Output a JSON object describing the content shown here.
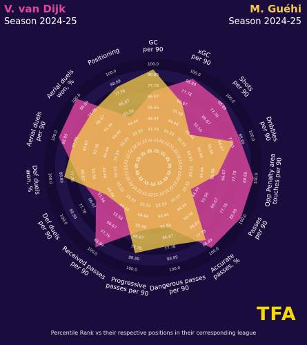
{
  "header": {
    "player1_name": "V. van Dijk",
    "player1_season": "Season 2024-25",
    "player2_name": "M. Guéhi",
    "player2_season": "Season 2024-25"
  },
  "logo_text": "TFA",
  "footnote": "Percentile Rank vs their respective positions in their corresponding league",
  "colors": {
    "background": "#1a0d3d",
    "ring_dark": "#150a33",
    "ring_light": "#22124a",
    "player1": "#e0479e",
    "player2": "#f2c94c"
  },
  "chart_data": {
    "type": "radar",
    "scale_labels": [
      "11.11",
      "22.22",
      "33.33",
      "44.44",
      "55.56",
      "66.67",
      "77.78",
      "88.89",
      "100.0"
    ],
    "max": 100,
    "axes": [
      {
        "lines": [
          "GC",
          "per 90"
        ]
      },
      {
        "lines": [
          "xGC",
          "per 90"
        ]
      },
      {
        "lines": [
          "Shots",
          "per 90"
        ]
      },
      {
        "lines": [
          "Dribbles",
          "per 90"
        ]
      },
      {
        "lines": [
          "Opp Penalty area",
          "touches per 90"
        ]
      },
      {
        "lines": [
          "Passes",
          "per 90"
        ]
      },
      {
        "lines": [
          "Accurate",
          "passes, %"
        ]
      },
      {
        "lines": [
          "Dangerous passes",
          "per 90"
        ]
      },
      {
        "lines": [
          "Progressive",
          "passes per 90"
        ]
      },
      {
        "lines": [
          "Received passes",
          "per 90"
        ]
      },
      {
        "lines": [
          "Def duels",
          "per 90"
        ]
      },
      {
        "lines": [
          "Def duels",
          "won, %"
        ]
      },
      {
        "lines": [
          "Aerial duels",
          "per 90"
        ]
      },
      {
        "lines": [
          "Aerial duels",
          "won, %"
        ]
      },
      {
        "lines": [
          "Positioning"
        ]
      }
    ],
    "series": [
      {
        "name": "V. van Dijk",
        "values": [
          67,
          88,
          86,
          82,
          92,
          92,
          90,
          50,
          55,
          89,
          56,
          66,
          90,
          94,
          45
        ]
      },
      {
        "name": "M. Guéhi",
        "values": [
          89,
          61,
          39,
          75,
          55,
          33,
          80,
          70,
          78,
          40,
          44,
          80,
          74,
          73,
          79
        ]
      }
    ]
  }
}
